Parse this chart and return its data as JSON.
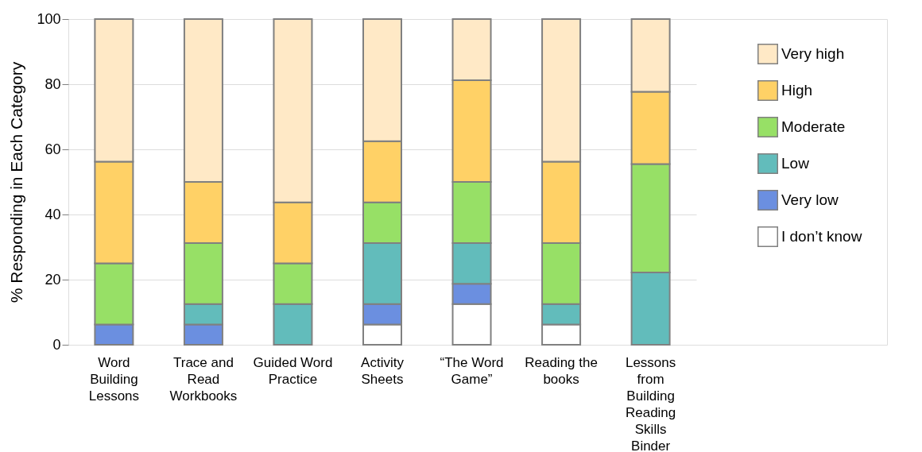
{
  "chart_data": {
    "type": "bar",
    "stacked": true,
    "ylabel": "% Responding in Each Category",
    "categories": [
      "Word Building Lessons",
      "Trace and Read Workbooks",
      "Guided Word Practice",
      "Activity Sheets",
      "“The Word Game”",
      "Reading the books",
      "Lessons from Building Reading Skills Binder"
    ],
    "series": [
      {
        "name": "I don’t know",
        "color": "#ffffff",
        "values": [
          null,
          null,
          null,
          6.25,
          12.5,
          6.25,
          null
        ]
      },
      {
        "name": "Very low",
        "color": "#6b8fe0",
        "values": [
          6.25,
          6.25,
          null,
          6.25,
          6.25,
          null,
          null
        ]
      },
      {
        "name": "Low",
        "color": "#62bcbb",
        "values": [
          null,
          6.25,
          12.5,
          18.75,
          12.5,
          6.25,
          22.2
        ]
      },
      {
        "name": "Moderate",
        "color": "#97e066",
        "values": [
          18.75,
          18.75,
          12.5,
          12.5,
          18.75,
          18.75,
          33.3
        ]
      },
      {
        "name": "High",
        "color": "#ffd166",
        "values": [
          31.25,
          18.75,
          18.75,
          18.75,
          31.25,
          25,
          22.2
        ]
      },
      {
        "name": "Very high",
        "color": "#ffe9c6",
        "values": [
          43.75,
          50,
          56.25,
          37.5,
          18.75,
          43.75,
          22.3
        ]
      }
    ],
    "ylim": [
      0,
      100
    ],
    "yticks": [
      0,
      20,
      40,
      60,
      80,
      100
    ],
    "grid": "y",
    "legend": "top right"
  }
}
